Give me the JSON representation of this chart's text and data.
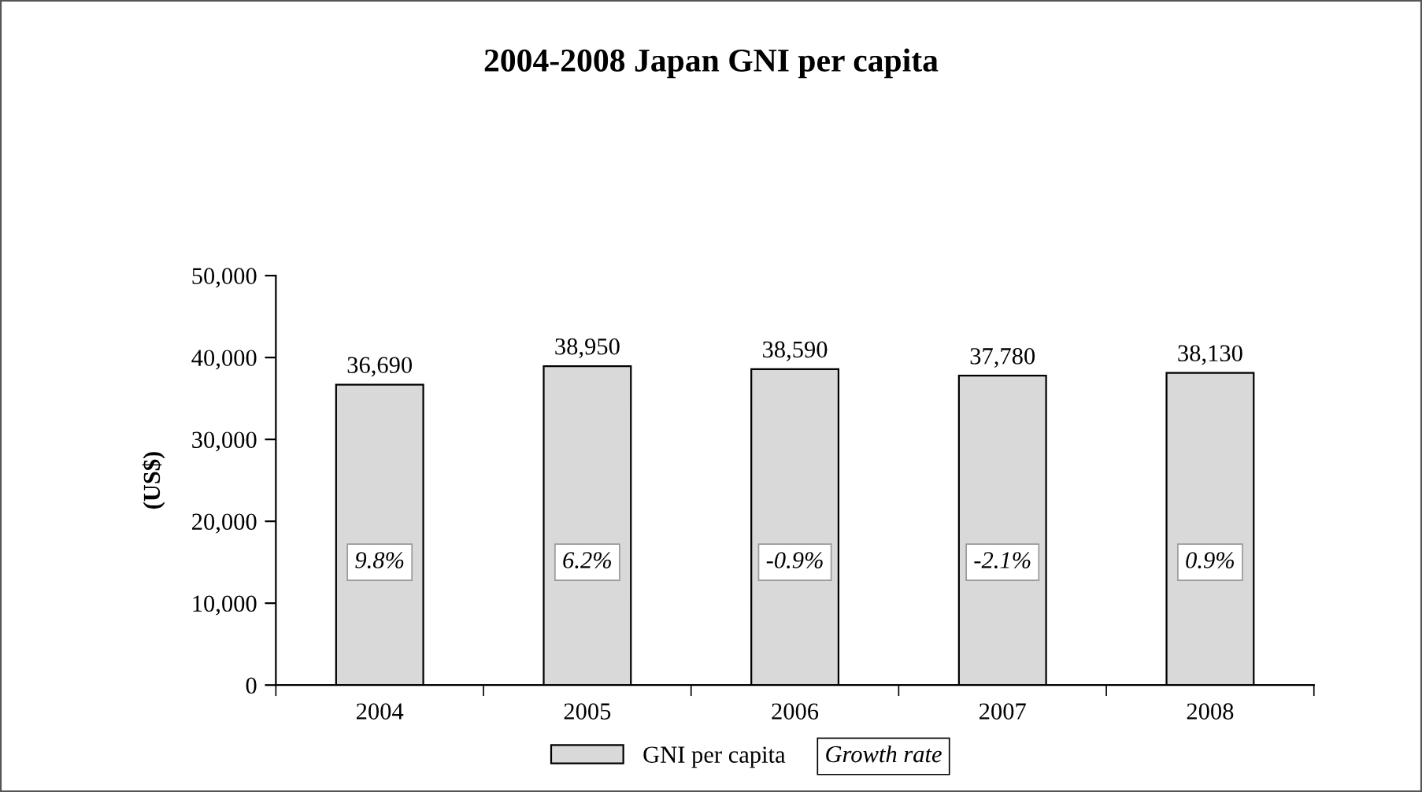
{
  "chart_data": {
    "type": "bar",
    "title": "2004-2008 Japan GNI per capita",
    "ylabel": "(US$)",
    "categories": [
      "2004",
      "2005",
      "2006",
      "2007",
      "2008"
    ],
    "series": [
      {
        "name": "GNI per capita",
        "color": "#d9d9d9",
        "values": [
          36690,
          38950,
          38590,
          37780,
          38130
        ]
      }
    ],
    "value_labels": [
      "36,690",
      "38,950",
      "38,590",
      "37,780",
      "38,130"
    ],
    "ylim": [
      0,
      50000
    ],
    "yticks": [
      {
        "value": 0,
        "label": "0"
      },
      {
        "value": 10000,
        "label": "10,000"
      },
      {
        "value": 20000,
        "label": "20,000"
      },
      {
        "value": 30000,
        "label": "30,000"
      },
      {
        "value": 40000,
        "label": "40,000"
      },
      {
        "value": 50000,
        "label": "50,000"
      }
    ],
    "annotations": [
      "9.8%",
      "6.2%",
      "-0.9%",
      "-2.1%",
      "0.9%",
      "Growth rate"
    ],
    "grid": false,
    "legend": "bottom"
  }
}
